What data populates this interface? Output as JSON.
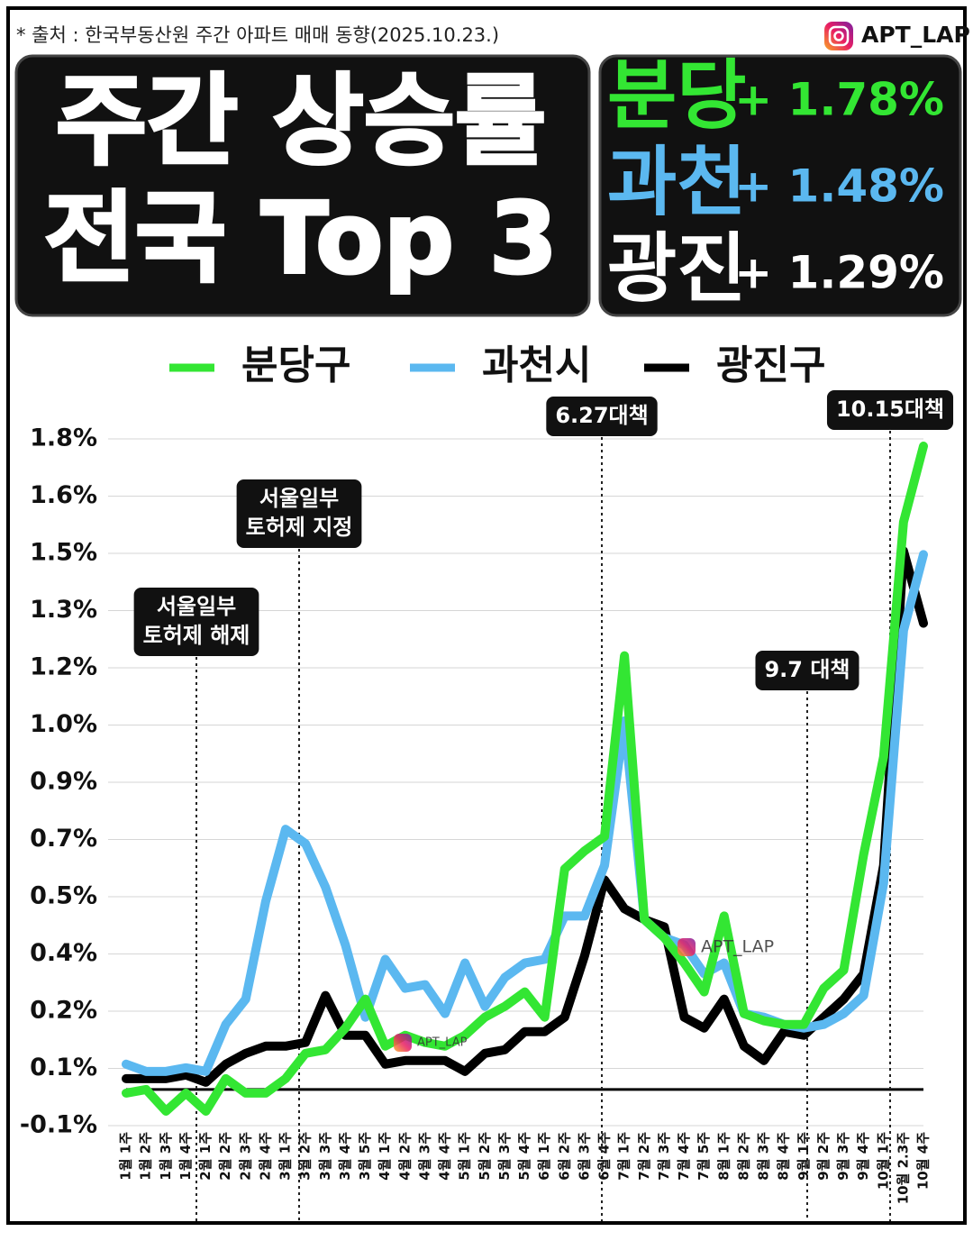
{
  "header": {
    "source": "* 출처 : 한국부동산원 주간 아파트 매매 동향(2025.10.23.)",
    "brand": "APT_LAP",
    "title_lines": [
      "주간 상승률",
      "전국 Top 3"
    ],
    "ranks": [
      {
        "region": "분당",
        "change": "+ 1.78%"
      },
      {
        "region": "과천",
        "change": "+ 1.48%"
      },
      {
        "region": "광진",
        "change": "+ 1.29%"
      }
    ]
  },
  "watermarks": [
    "APT_LAP",
    "APT_LAP"
  ],
  "chart_data": {
    "type": "line",
    "categories": [
      "1월 1주",
      "1월 2주",
      "1월 3주",
      "1월 4주",
      "2월 1주",
      "2월 2주",
      "2월 3주",
      "2월 4주",
      "3월 1주",
      "3월 2주",
      "3월 3주",
      "3월 4주",
      "3월 5주",
      "4월 1주",
      "4월 2주",
      "4월 3주",
      "4월 4주",
      "5월 1주",
      "5월 2주",
      "5월 3주",
      "5월 4주",
      "6월 1주",
      "6월 2주",
      "6월 3주",
      "6월 4주",
      "7월 1주",
      "7월 2주",
      "7월 3주",
      "7월 4주",
      "7월 5주",
      "8월 1주",
      "8월 2주",
      "8월 3주",
      "8월 4주",
      "9월 1주",
      "9월 2주",
      "9월 3주",
      "9월 4주",
      "10월 1주",
      "10월 2.3주",
      "10월 4주"
    ],
    "series": [
      {
        "name": "분당구",
        "color": "#33e633",
        "values": [
          -0.01,
          0.0,
          -0.06,
          -0.01,
          -0.06,
          0.03,
          -0.01,
          -0.01,
          0.03,
          0.1,
          0.11,
          0.17,
          0.25,
          0.12,
          0.15,
          0.13,
          0.12,
          0.15,
          0.2,
          0.23,
          0.27,
          0.2,
          0.61,
          0.66,
          0.7,
          1.2,
          0.47,
          0.42,
          0.35,
          0.27,
          0.48,
          0.21,
          0.19,
          0.18,
          0.18,
          0.28,
          0.33,
          0.65,
          0.92,
          1.57,
          1.78
        ]
      },
      {
        "name": "과천시",
        "color": "#5bb8f0",
        "values": [
          0.07,
          0.05,
          0.05,
          0.06,
          0.05,
          0.18,
          0.25,
          0.52,
          0.72,
          0.68,
          0.56,
          0.4,
          0.2,
          0.36,
          0.28,
          0.29,
          0.21,
          0.35,
          0.23,
          0.31,
          0.35,
          0.36,
          0.48,
          0.48,
          0.62,
          1.02,
          0.47,
          0.42,
          0.4,
          0.32,
          0.35,
          0.21,
          0.2,
          0.18,
          0.17,
          0.18,
          0.21,
          0.26,
          0.57,
          1.27,
          1.48
        ]
      },
      {
        "name": "광진구",
        "color": "#000000",
        "values": [
          0.03,
          0.03,
          0.03,
          0.04,
          0.02,
          0.07,
          0.1,
          0.12,
          0.12,
          0.13,
          0.26,
          0.15,
          0.15,
          0.07,
          0.08,
          0.08,
          0.08,
          0.05,
          0.1,
          0.11,
          0.16,
          0.16,
          0.2,
          0.37,
          0.58,
          0.5,
          0.47,
          0.45,
          0.2,
          0.17,
          0.25,
          0.12,
          0.08,
          0.16,
          0.15,
          0.2,
          0.25,
          0.32,
          0.62,
          1.49,
          1.29
        ]
      }
    ],
    "ylim": [
      -0.1,
      1.8
    ],
    "yticks": [
      {
        "value": -0.1,
        "label": "-0.1%"
      },
      {
        "value": 0.0583,
        "label": "0.1%"
      },
      {
        "value": 0.2167,
        "label": "0.2%"
      },
      {
        "value": 0.375,
        "label": "0.4%"
      },
      {
        "value": 0.5333,
        "label": "0.5%"
      },
      {
        "value": 0.6917,
        "label": "0.7%"
      },
      {
        "value": 0.85,
        "label": "0.9%"
      },
      {
        "value": 1.0083,
        "label": "1.0%"
      },
      {
        "value": 1.1667,
        "label": "1.2%"
      },
      {
        "value": 1.325,
        "label": "1.3%"
      },
      {
        "value": 1.4833,
        "label": "1.5%"
      },
      {
        "value": 1.6417,
        "label": "1.6%"
      },
      {
        "value": 1.8,
        "label": "1.8%"
      }
    ],
    "grid": true,
    "annotations": [
      {
        "lines": [
          "서울일부",
          "토허제 해제"
        ]
      },
      {
        "lines": [
          "서울일부",
          "토허제 지정"
        ]
      },
      {
        "lines": [
          "6.27대책"
        ]
      },
      {
        "lines": [
          "9.7 대책"
        ]
      },
      {
        "lines": [
          "10.15대책"
        ]
      }
    ]
  }
}
